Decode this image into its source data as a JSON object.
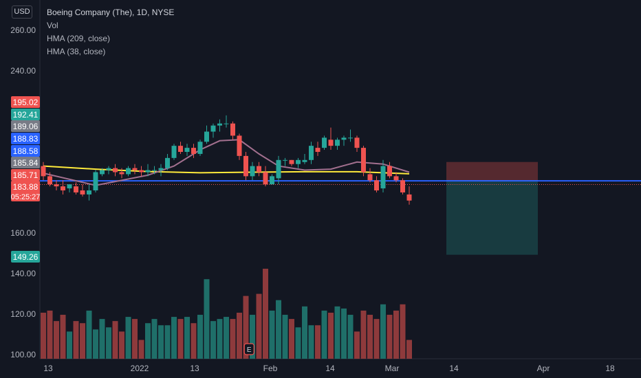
{
  "header": {
    "currency": "USD",
    "title": "Boeing Company (The), 1D, NYSE",
    "indicators": [
      "Vol",
      "HMA (209, close)",
      "HMA (38, close)"
    ]
  },
  "colors": {
    "background": "#131722",
    "up": "#26a69a",
    "down": "#ef5350",
    "vol_up": "#1f6f69",
    "vol_down": "#8e3a3c",
    "hma209": "#ffeb3b",
    "hma38": "#a3708f",
    "hline": "#2962ff"
  },
  "axis": {
    "y_ticks": [
      "260.00",
      "240.00",
      "160.00",
      "140.00",
      "120.00",
      "100.00"
    ],
    "x_ticks": [
      "13",
      "2022",
      "13",
      "Feb",
      "14",
      "Mar",
      "14",
      "Apr",
      "18"
    ]
  },
  "price_labels": [
    {
      "text": "195.02",
      "color": "#ef5350",
      "price": 195.02
    },
    {
      "text": "192.41",
      "color": "#26a69a",
      "price": 192.41
    },
    {
      "text": "189.06",
      "color": "#787b86",
      "price": 189.06
    },
    {
      "text": "188.83",
      "color": "#2962ff",
      "price": 188.83
    },
    {
      "text": "188.58",
      "color": "#2962ff",
      "price": 188.58
    },
    {
      "text": "185.84",
      "color": "#787b86",
      "price": 185.84
    },
    {
      "text": "185.71",
      "color": "#ef5350",
      "price": 185.71
    },
    {
      "text": "183.88",
      "color": "#ef5350",
      "price": 183.88,
      "sub": "05:25:27"
    },
    {
      "text": "149.26",
      "color": "#26a69a",
      "price": 149.26
    }
  ],
  "earnings_marker": "E",
  "chart_data": {
    "type": "candlestick",
    "y_range": [
      96,
      268
    ],
    "horizontal_line": 185.71,
    "last_price_line": 183.88,
    "position_box": {
      "entry": 185.84,
      "stop": 195.02,
      "target": 149.26
    },
    "candles": [
      [
        193,
        195,
        186,
        188,
        1.22
      ],
      [
        188,
        190,
        183,
        184,
        1.23
      ],
      [
        184,
        186,
        181,
        183,
        1.18
      ],
      [
        183,
        186,
        179,
        181,
        1.21
      ],
      [
        182,
        184,
        180,
        184,
        1.13
      ],
      [
        183,
        185,
        179,
        180,
        1.18
      ],
      [
        181,
        184,
        178,
        179,
        1.17
      ],
      [
        179,
        184,
        176,
        181,
        1.23
      ],
      [
        181,
        191,
        180,
        190,
        1.14
      ],
      [
        189,
        192,
        188,
        191,
        1.19
      ],
      [
        191,
        193,
        189,
        192,
        1.15
      ],
      [
        192,
        194,
        188,
        190,
        1.18
      ],
      [
        190,
        192,
        187,
        189,
        1.13
      ],
      [
        189,
        193,
        188,
        192,
        1.2
      ],
      [
        192,
        194,
        189,
        191,
        1.19
      ],
      [
        191,
        193,
        188,
        190,
        1.09
      ],
      [
        190,
        194,
        188,
        191,
        1.17
      ],
      [
        191,
        193,
        189,
        191,
        1.19
      ],
      [
        191,
        194,
        188,
        192,
        1.16
      ],
      [
        192,
        199,
        191,
        197,
        1.16
      ],
      [
        197,
        204,
        196,
        203,
        1.2
      ],
      [
        203,
        205,
        199,
        200,
        1.19
      ],
      [
        200,
        204,
        198,
        202,
        1.2
      ],
      [
        202,
        204,
        197,
        199,
        1.17
      ],
      [
        199,
        206,
        198,
        205,
        1.21
      ],
      [
        205,
        213,
        204,
        210,
        1.38
      ],
      [
        210,
        214,
        207,
        213,
        1.18
      ],
      [
        213,
        216,
        210,
        214,
        1.19
      ],
      [
        214,
        218,
        212,
        214,
        1.2
      ],
      [
        214,
        215,
        206,
        208,
        1.19
      ],
      [
        208,
        209,
        196,
        198,
        1.22
      ],
      [
        198,
        200,
        186,
        188,
        1.3
      ],
      [
        188,
        195,
        186,
        193,
        1.21
      ],
      [
        193,
        195,
        188,
        190,
        1.31
      ],
      [
        190,
        193,
        183,
        184,
        1.43
      ],
      [
        184,
        189,
        184,
        188,
        1.23
      ],
      [
        187,
        198,
        184,
        196,
        1.28
      ],
      [
        196,
        197,
        193,
        196,
        1.21
      ],
      [
        196,
        196,
        193,
        194,
        1.19
      ],
      [
        194,
        197,
        192,
        196,
        1.15
      ],
      [
        195,
        199,
        194,
        196,
        1.25
      ],
      [
        196,
        205,
        194,
        203,
        1.16
      ],
      [
        202,
        205,
        198,
        200,
        1.16
      ],
      [
        202,
        208,
        201,
        207,
        1.23
      ],
      [
        206,
        212,
        201,
        203,
        1.22
      ],
      [
        203,
        207,
        201,
        206,
        1.25
      ],
      [
        206,
        208,
        203,
        207,
        1.24
      ],
      [
        207,
        211,
        205,
        207,
        1.21
      ],
      [
        207,
        208,
        200,
        202,
        1.13
      ],
      [
        202,
        203,
        188,
        190,
        1.23
      ],
      [
        189,
        192,
        185,
        186,
        1.21
      ],
      [
        186,
        188,
        180,
        181,
        1.19
      ],
      [
        182,
        196,
        180,
        193,
        1.26
      ],
      [
        193,
        195,
        187,
        188,
        1.21
      ],
      [
        188,
        190,
        185,
        186,
        1.23
      ],
      [
        186,
        187,
        179,
        180,
        1.26
      ],
      [
        179,
        183,
        174,
        176,
        1.09
      ]
    ],
    "hma209": [
      [
        0,
        193
      ],
      [
        8,
        191.5
      ],
      [
        16,
        190.3
      ],
      [
        24,
        189.7
      ],
      [
        32,
        190.0
      ],
      [
        40,
        190.2
      ],
      [
        48,
        190.2
      ],
      [
        56,
        189.2
      ]
    ],
    "hma38": [
      [
        0,
        189.5
      ],
      [
        8,
        183.5
      ],
      [
        16,
        188.5
      ],
      [
        20,
        193
      ],
      [
        24,
        201
      ],
      [
        27,
        205.5
      ],
      [
        30,
        206
      ],
      [
        33,
        199
      ],
      [
        36,
        193
      ],
      [
        40,
        191
      ],
      [
        44,
        191.5
      ],
      [
        48,
        195
      ],
      [
        52,
        194
      ],
      [
        56,
        190
      ]
    ]
  }
}
